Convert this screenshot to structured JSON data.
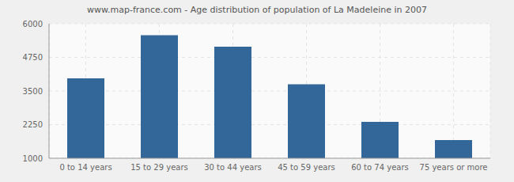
{
  "chart_data": {
    "type": "bar",
    "title": "www.map-france.com - Age distribution of population of La Madeleine in 2007",
    "categories": [
      "0 to 14 years",
      "15 to 29 years",
      "30 to 44 years",
      "45 to 59 years",
      "60 to 74 years",
      "75 years or more"
    ],
    "values": [
      3970,
      5570,
      5150,
      3750,
      2350,
      1680
    ],
    "color": "#336699",
    "ylim": [
      1000,
      6000
    ],
    "yticks": [
      1000,
      2250,
      3500,
      4750,
      6000
    ],
    "grid": true
  }
}
